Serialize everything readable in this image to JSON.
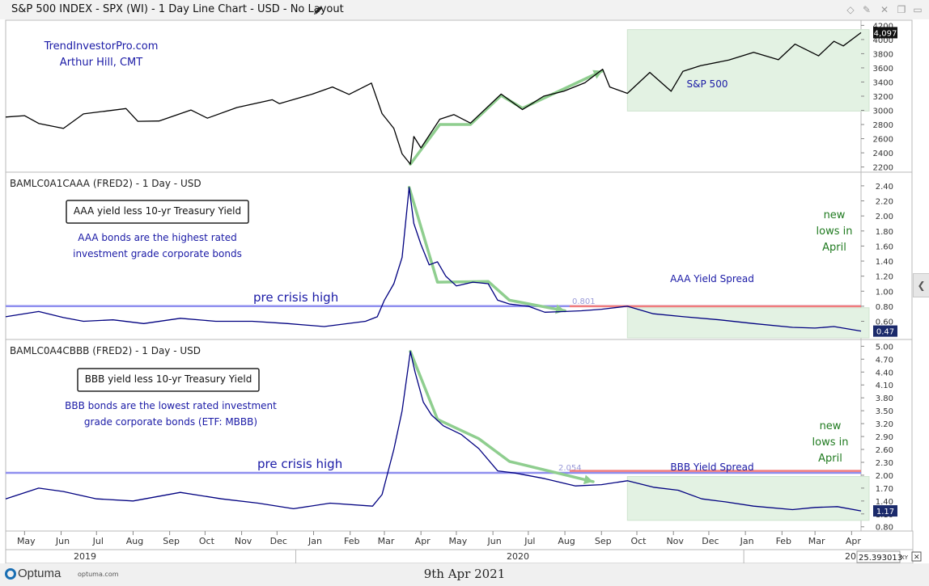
{
  "window": {
    "title": "S&P 500 INDEX - SPX (WI) - 1 Day Line Chart - USD - No Layout"
  },
  "icons": {
    "edit": "pencil-icon",
    "toolbar": [
      "diamond-icon",
      "pin-icon",
      "close-icon",
      "restore-icon",
      "menu-icon"
    ]
  },
  "colors": {
    "price_line": "#000000",
    "spread_line": "#000080",
    "pre_crisis_line": "#8f8fef",
    "resistance_line": "#f07c7c",
    "trend_arrows": "#8fce8f",
    "highlight_box": "#e3f2e3",
    "annotation_blue": "#1a1aa6",
    "annotation_green": "#1f7a1f"
  },
  "annotations": {
    "site": "TrendInvestorPro.com",
    "author": "Arthur Hill, CMT"
  },
  "footer": {
    "logo": "Optuma",
    "logo_url": "optuma.com",
    "date": "9th Apr 2021"
  },
  "x_axis": {
    "months": [
      "May",
      "Jun",
      "Jul",
      "Aug",
      "Sep",
      "Oct",
      "Nov",
      "Dec",
      "Jan",
      "Feb",
      "Mar",
      "Apr",
      "May",
      "Jun",
      "Jul",
      "Aug",
      "Sep",
      "Oct",
      "Nov",
      "Dec",
      "Jan",
      "Feb",
      "Mar",
      "Apr"
    ],
    "years": [
      "2019",
      "2020",
      "20"
    ],
    "scale_readout": "25.393013",
    "xy_label": "XY"
  },
  "chart_data": [
    {
      "type": "line",
      "title": "S&P 500 INDEX - SPX (WI) - 1 Day Line Chart - USD - No Layout",
      "series_label": "S&P 500",
      "x_range": [
        "2019-04-15",
        "2021-04-09"
      ],
      "y_ticks": [
        "4200",
        "4000",
        "3800",
        "3600",
        "3400",
        "3200",
        "3000",
        "2800",
        "2600",
        "2400",
        "2200"
      ],
      "ylim": [
        2150,
        4250
      ],
      "last_value": "4,097",
      "points": [
        [
          "2019-04-15",
          2905
        ],
        [
          "2019-05-01",
          2925
        ],
        [
          "2019-05-13",
          2815
        ],
        [
          "2019-06-03",
          2745
        ],
        [
          "2019-06-20",
          2950
        ],
        [
          "2019-07-26",
          3025
        ],
        [
          "2019-08-05",
          2845
        ],
        [
          "2019-08-23",
          2850
        ],
        [
          "2019-09-19",
          3005
        ],
        [
          "2019-10-03",
          2890
        ],
        [
          "2019-10-28",
          3040
        ],
        [
          "2019-11-27",
          3150
        ],
        [
          "2019-12-03",
          3095
        ],
        [
          "2019-12-31",
          3230
        ],
        [
          "2020-01-17",
          3330
        ],
        [
          "2020-01-31",
          3225
        ],
        [
          "2020-02-19",
          3385
        ],
        [
          "2020-02-28",
          2955
        ],
        [
          "2020-03-09",
          2745
        ],
        [
          "2020-03-16",
          2385
        ],
        [
          "2020-03-23",
          2240
        ],
        [
          "2020-03-26",
          2630
        ],
        [
          "2020-04-01",
          2470
        ],
        [
          "2020-04-17",
          2875
        ],
        [
          "2020-04-29",
          2940
        ],
        [
          "2020-05-13",
          2820
        ],
        [
          "2020-06-08",
          3230
        ],
        [
          "2020-06-26",
          3010
        ],
        [
          "2020-07-14",
          3200
        ],
        [
          "2020-07-31",
          3270
        ],
        [
          "2020-08-18",
          3390
        ],
        [
          "2020-09-02",
          3580
        ],
        [
          "2020-09-08",
          3330
        ],
        [
          "2020-09-23",
          3240
        ],
        [
          "2020-10-12",
          3535
        ],
        [
          "2020-10-30",
          3270
        ],
        [
          "2020-11-09",
          3550
        ],
        [
          "2020-11-24",
          3630
        ],
        [
          "2020-12-18",
          3710
        ],
        [
          "2021-01-08",
          3820
        ],
        [
          "2021-01-29",
          3715
        ],
        [
          "2021-02-12",
          3935
        ],
        [
          "2021-03-04",
          3770
        ],
        [
          "2021-03-17",
          3975
        ],
        [
          "2021-03-25",
          3910
        ],
        [
          "2021-04-09",
          4097
        ]
      ],
      "trend_arrows": [
        [
          [
            "2020-03-23",
            2240
          ],
          [
            "2020-04-17",
            2800
          ],
          [
            "2020-05-13",
            2800
          ],
          [
            "2020-06-08",
            3210
          ],
          [
            "2020-06-26",
            3030
          ],
          [
            "2020-09-02",
            3560
          ]
        ]
      ],
      "highlight": {
        "from": "2020-09-23",
        "to": "2021-04-09",
        "y_from": 2990,
        "y_to": 4140
      }
    },
    {
      "type": "line",
      "title": "BAMLC0A1CAAA (FRED2) - 1 Day - USD",
      "legend_box": "AAA yield less 10-yr Treasury Yield",
      "note_lines": [
        "AAA bonds are the highest rated",
        "investment grade corporate bonds"
      ],
      "series_label": "AAA Yield Spread",
      "callout_lines": [
        "new",
        "lows in",
        "April"
      ],
      "reference_label": "pre crisis high",
      "reference_value": 0.801,
      "reference_value_label": "0.801",
      "y_ticks": [
        "2.40",
        "2.20",
        "2.00",
        "1.80",
        "1.60",
        "1.40",
        "1.20",
        "1.00",
        "0.80",
        "0.60"
      ],
      "ylim": [
        0.38,
        2.56
      ],
      "last_value": "0.47",
      "points": [
        [
          "2019-04-15",
          0.66
        ],
        [
          "2019-05-13",
          0.73
        ],
        [
          "2019-06-03",
          0.65
        ],
        [
          "2019-06-20",
          0.6
        ],
        [
          "2019-07-15",
          0.62
        ],
        [
          "2019-08-10",
          0.57
        ],
        [
          "2019-09-10",
          0.64
        ],
        [
          "2019-10-10",
          0.6
        ],
        [
          "2019-11-10",
          0.6
        ],
        [
          "2019-12-10",
          0.57
        ],
        [
          "2020-01-10",
          0.53
        ],
        [
          "2020-02-14",
          0.6
        ],
        [
          "2020-02-24",
          0.66
        ],
        [
          "2020-03-01",
          0.88
        ],
        [
          "2020-03-09",
          1.1
        ],
        [
          "2020-03-16",
          1.45
        ],
        [
          "2020-03-22",
          2.38
        ],
        [
          "2020-03-26",
          1.9
        ],
        [
          "2020-04-01",
          1.62
        ],
        [
          "2020-04-08",
          1.35
        ],
        [
          "2020-04-15",
          1.39
        ],
        [
          "2020-04-22",
          1.2
        ],
        [
          "2020-05-01",
          1.07
        ],
        [
          "2020-05-15",
          1.12
        ],
        [
          "2020-05-28",
          1.1
        ],
        [
          "2020-06-05",
          0.88
        ],
        [
          "2020-06-15",
          0.83
        ],
        [
          "2020-07-01",
          0.8
        ],
        [
          "2020-07-15",
          0.72
        ],
        [
          "2020-08-01",
          0.73
        ],
        [
          "2020-08-15",
          0.74
        ],
        [
          "2020-09-01",
          0.76
        ],
        [
          "2020-09-23",
          0.8
        ],
        [
          "2020-10-15",
          0.7
        ],
        [
          "2020-11-10",
          0.66
        ],
        [
          "2020-12-10",
          0.62
        ],
        [
          "2021-01-08",
          0.57
        ],
        [
          "2021-02-10",
          0.52
        ],
        [
          "2021-03-01",
          0.51
        ],
        [
          "2021-03-17",
          0.53
        ],
        [
          "2021-04-09",
          0.47
        ]
      ],
      "trend_arrows": [
        [
          [
            "2020-03-22",
            2.38
          ],
          [
            "2020-04-15",
            1.12
          ],
          [
            "2020-05-28",
            1.13
          ],
          [
            "2020-06-15",
            0.88
          ],
          [
            "2020-08-01",
            0.74
          ]
        ]
      ],
      "resistance": {
        "from": "2020-08-05",
        "to": "2021-04-09",
        "value": 0.8
      },
      "highlight": {
        "from": "2020-09-23",
        "to": "2021-04-09",
        "y_from": 0.38,
        "y_to": 0.78
      }
    },
    {
      "type": "line",
      "title": "BAMLC0A4CBBB (FRED2) - 1 Day - USD",
      "legend_box": "BBB yield less 10-yr Treasury Yield",
      "note_lines": [
        "BBB bonds are the lowest rated investment",
        "grade corporate bonds (ETF: MBBB)"
      ],
      "series_label": "BBB Yield Spread",
      "callout_lines": [
        "new",
        "lows in",
        "April"
      ],
      "reference_label": "pre crisis high",
      "reference_value": 2.054,
      "reference_value_label": "2.054",
      "y_ticks": [
        "5.00",
        "4.70",
        "4.40",
        "4.10",
        "3.80",
        "3.50",
        "3.20",
        "2.90",
        "2.60",
        "2.30",
        "2.00",
        "1.70",
        "1.40",
        "1.10",
        "0.80"
      ],
      "ylim": [
        0.72,
        5.12
      ],
      "last_value": "1.17",
      "points": [
        [
          "2019-04-15",
          1.45
        ],
        [
          "2019-05-13",
          1.7
        ],
        [
          "2019-06-03",
          1.62
        ],
        [
          "2019-07-01",
          1.45
        ],
        [
          "2019-08-01",
          1.4
        ],
        [
          "2019-09-10",
          1.6
        ],
        [
          "2019-10-15",
          1.45
        ],
        [
          "2019-11-15",
          1.35
        ],
        [
          "2019-12-15",
          1.22
        ],
        [
          "2020-01-15",
          1.35
        ],
        [
          "2020-02-20",
          1.28
        ],
        [
          "2020-02-28",
          1.55
        ],
        [
          "2020-03-09",
          2.6
        ],
        [
          "2020-03-16",
          3.5
        ],
        [
          "2020-03-23",
          4.88
        ],
        [
          "2020-03-27",
          4.4
        ],
        [
          "2020-04-03",
          3.7
        ],
        [
          "2020-04-10",
          3.4
        ],
        [
          "2020-04-20",
          3.15
        ],
        [
          "2020-05-05",
          2.95
        ],
        [
          "2020-05-20",
          2.62
        ],
        [
          "2020-06-05",
          2.1
        ],
        [
          "2020-06-20",
          2.05
        ],
        [
          "2020-07-15",
          1.92
        ],
        [
          "2020-08-10",
          1.75
        ],
        [
          "2020-09-01",
          1.78
        ],
        [
          "2020-09-23",
          1.87
        ],
        [
          "2020-10-15",
          1.72
        ],
        [
          "2020-11-05",
          1.65
        ],
        [
          "2020-11-25",
          1.45
        ],
        [
          "2020-12-15",
          1.38
        ],
        [
          "2021-01-08",
          1.28
        ],
        [
          "2021-02-10",
          1.2
        ],
        [
          "2021-03-01",
          1.25
        ],
        [
          "2021-03-20",
          1.27
        ],
        [
          "2021-04-09",
          1.17
        ]
      ],
      "trend_arrows": [
        [
          [
            "2020-03-23",
            4.88
          ],
          [
            "2020-04-15",
            3.3
          ],
          [
            "2020-05-20",
            2.85
          ],
          [
            "2020-06-15",
            2.32
          ],
          [
            "2020-08-25",
            1.85
          ]
        ]
      ],
      "resistance": {
        "from": "2020-08-05",
        "to": "2021-04-09",
        "value": 2.1
      },
      "highlight": {
        "from": "2020-09-23",
        "to": "2021-04-09",
        "y_from": 0.95,
        "y_to": 1.97
      }
    }
  ]
}
